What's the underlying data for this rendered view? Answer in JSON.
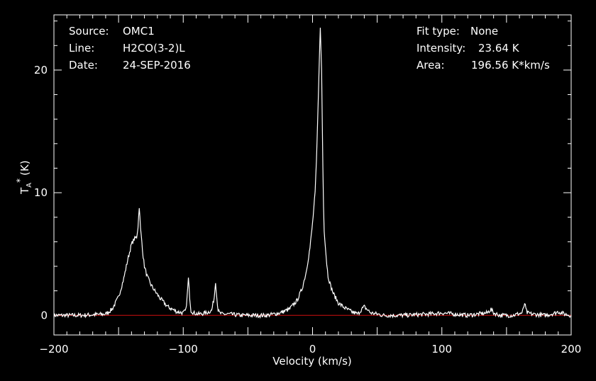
{
  "header": {
    "source_label": "Source:",
    "source_value": "OMC1",
    "line_label": "Line:",
    "line_value": "H2CO(3-2)L",
    "date_label": "Date:",
    "date_value": "24-SEP-2016",
    "fit_label": "Fit type:",
    "fit_value": "None",
    "intensity_label": "Intensity:",
    "intensity_value": "23.64 K",
    "area_label": "Area:",
    "area_value": "196.56 K*km/s"
  },
  "colors": {
    "background": "#000000",
    "foreground": "#ffffff",
    "baseline": "#d01010"
  },
  "chart_data": {
    "type": "line",
    "xlabel": "Velocity (km/s)",
    "ylabel_main": "T",
    "ylabel_sub": "A",
    "ylabel_sup": "*",
    "ylabel_unit": "(K)",
    "xlim": [
      -200,
      200
    ],
    "ylim": [
      -1.6,
      24.5
    ],
    "x_ticks": [
      -200,
      -100,
      0,
      100,
      200
    ],
    "x_tick_labels": [
      "−200",
      "−100",
      "0",
      "100",
      "200"
    ],
    "y_ticks": [
      0,
      10,
      20
    ],
    "y_tick_labels": [
      "0",
      "10",
      "20"
    ],
    "baseline_value": 0,
    "grid": false,
    "series": [
      {
        "x": [
          -200,
          -180,
          -160,
          -155,
          -150,
          -146,
          -143,
          -140,
          -138,
          -136,
          -135,
          -134,
          -133,
          -132,
          -131,
          -130,
          -128,
          -125,
          -122,
          -118,
          -112,
          -105,
          -100,
          -98,
          -97,
          -96,
          -95,
          -94,
          -92,
          -88,
          -82,
          -78,
          -76,
          -75,
          -74,
          -73,
          -72,
          -70,
          -65,
          -55,
          -45,
          -35,
          -25,
          -18,
          -12,
          -8,
          -5,
          -2,
          0,
          2,
          3,
          4,
          5,
          6,
          7,
          7.5,
          8,
          8.5,
          9,
          10,
          11,
          12,
          14,
          16,
          20,
          25,
          30,
          35,
          38,
          40,
          45,
          55,
          70,
          90,
          100,
          120,
          135,
          138,
          140,
          145,
          155,
          162,
          163,
          164,
          165,
          166,
          170,
          180,
          188,
          190,
          195,
          200
        ],
        "y": [
          0,
          0,
          0.1,
          0.5,
          1.5,
          3,
          4.5,
          5.8,
          6.2,
          6.4,
          7.2,
          8.9,
          7,
          6,
          4.8,
          4,
          3.2,
          2.5,
          2,
          1.4,
          0.7,
          0.3,
          0.2,
          0.4,
          1.5,
          3,
          1.5,
          0.4,
          0.2,
          0.1,
          0.2,
          0.4,
          1.5,
          2.8,
          1.4,
          0.4,
          0.2,
          0.1,
          0.1,
          0,
          0,
          0,
          0.2,
          0.5,
          1.2,
          2.2,
          3.5,
          5.5,
          7.5,
          10,
          12.5,
          16,
          20,
          23.4,
          20,
          16,
          12,
          9,
          7,
          5.5,
          4.2,
          3.2,
          2.4,
          1.8,
          1,
          0.6,
          0.3,
          0.1,
          0.5,
          0.7,
          0.2,
          0,
          0,
          0.1,
          0.2,
          0,
          0.2,
          0.5,
          0.2,
          0,
          0,
          0.2,
          0.5,
          1,
          0.5,
          0.2,
          0.1,
          0,
          0.2,
          0.3,
          0.1,
          0
        ]
      }
    ]
  }
}
